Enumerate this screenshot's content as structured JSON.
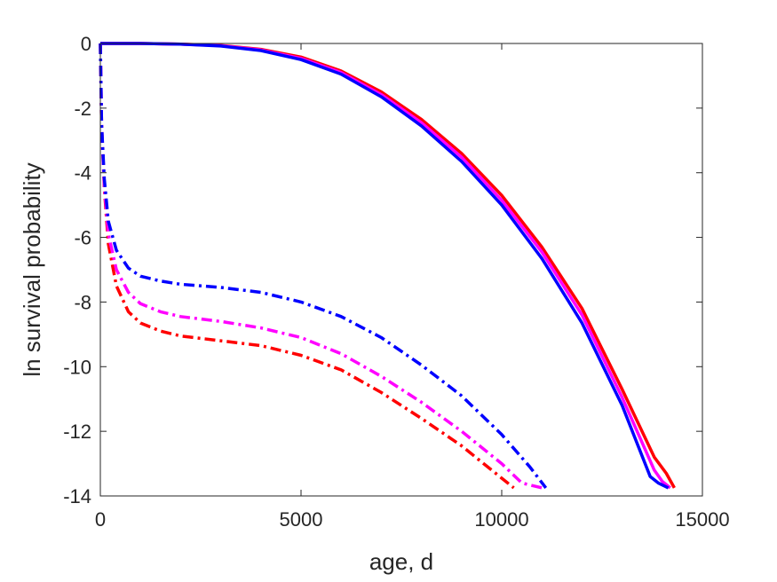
{
  "chart_data": {
    "type": "line",
    "title": "",
    "xlabel": "age, d",
    "ylabel": "ln survival probability",
    "xlim": [
      0,
      15000
    ],
    "ylim": [
      -14,
      0
    ],
    "xticks": [
      0,
      5000,
      10000,
      15000
    ],
    "yticks": [
      0,
      -2,
      -4,
      -6,
      -8,
      -10,
      -12,
      -14
    ],
    "grid": false,
    "legend": "none",
    "series": [
      {
        "style": "solid",
        "color": "#ff0000",
        "x": [
          0,
          1000,
          2000,
          3000,
          4000,
          5000,
          6000,
          7000,
          8000,
          9000,
          10000,
          11000,
          12000,
          13000,
          13800,
          14100,
          14300
        ],
        "y": [
          0,
          0,
          -0.02,
          -0.06,
          -0.18,
          -0.42,
          -0.85,
          -1.5,
          -2.35,
          -3.4,
          -4.7,
          -6.3,
          -8.2,
          -10.7,
          -12.8,
          -13.3,
          -13.75
        ]
      },
      {
        "style": "solid",
        "color": "#ff00ff",
        "x": [
          0,
          1000,
          2000,
          3000,
          4000,
          5000,
          6000,
          7000,
          8000,
          9000,
          10000,
          11000,
          12000,
          13000,
          13800,
          14000,
          14200
        ],
        "y": [
          0,
          0,
          -0.02,
          -0.07,
          -0.2,
          -0.46,
          -0.9,
          -1.58,
          -2.45,
          -3.52,
          -4.85,
          -6.45,
          -8.4,
          -10.95,
          -13.2,
          -13.55,
          -13.75
        ]
      },
      {
        "style": "solid",
        "color": "#0000ff",
        "x": [
          0,
          1000,
          2000,
          3000,
          4000,
          5000,
          6000,
          7000,
          8000,
          9000,
          10000,
          11000,
          12000,
          13000,
          13700,
          13900,
          14150
        ],
        "y": [
          0,
          0,
          -0.02,
          -0.08,
          -0.22,
          -0.5,
          -0.95,
          -1.65,
          -2.55,
          -3.65,
          -5.0,
          -6.65,
          -8.65,
          -11.2,
          -13.4,
          -13.6,
          -13.75
        ]
      },
      {
        "style": "dashdot",
        "color": "#ff0000",
        "x": [
          0,
          30,
          100,
          200,
          400,
          700,
          1000,
          1500,
          2000,
          3000,
          4000,
          5000,
          6000,
          7000,
          8000,
          9000,
          9500,
          10000,
          10300
        ],
        "y": [
          0,
          -2.5,
          -4.5,
          -6.2,
          -7.5,
          -8.3,
          -8.65,
          -8.9,
          -9.05,
          -9.2,
          -9.35,
          -9.65,
          -10.1,
          -10.8,
          -11.6,
          -12.45,
          -12.95,
          -13.45,
          -13.75
        ]
      },
      {
        "style": "dashdot",
        "color": "#ff00ff",
        "x": [
          0,
          30,
          100,
          200,
          400,
          700,
          1000,
          1500,
          2000,
          3000,
          4000,
          5000,
          6000,
          7000,
          8000,
          9000,
          10000,
          10500,
          11000
        ],
        "y": [
          0,
          -2.5,
          -4.4,
          -5.9,
          -7.0,
          -7.7,
          -8.05,
          -8.3,
          -8.45,
          -8.6,
          -8.8,
          -9.1,
          -9.6,
          -10.3,
          -11.1,
          -12.0,
          -13.0,
          -13.6,
          -13.75
        ]
      },
      {
        "style": "dashdot",
        "color": "#0000ff",
        "x": [
          0,
          30,
          100,
          200,
          400,
          700,
          1000,
          1500,
          2000,
          3000,
          4000,
          5000,
          6000,
          7000,
          8000,
          9000,
          10000,
          10700,
          11100
        ],
        "y": [
          0,
          -2.5,
          -4.2,
          -5.5,
          -6.4,
          -6.95,
          -7.2,
          -7.35,
          -7.45,
          -7.55,
          -7.7,
          -8.0,
          -8.45,
          -9.1,
          -9.95,
          -10.9,
          -12.1,
          -13.1,
          -13.75
        ]
      }
    ]
  }
}
